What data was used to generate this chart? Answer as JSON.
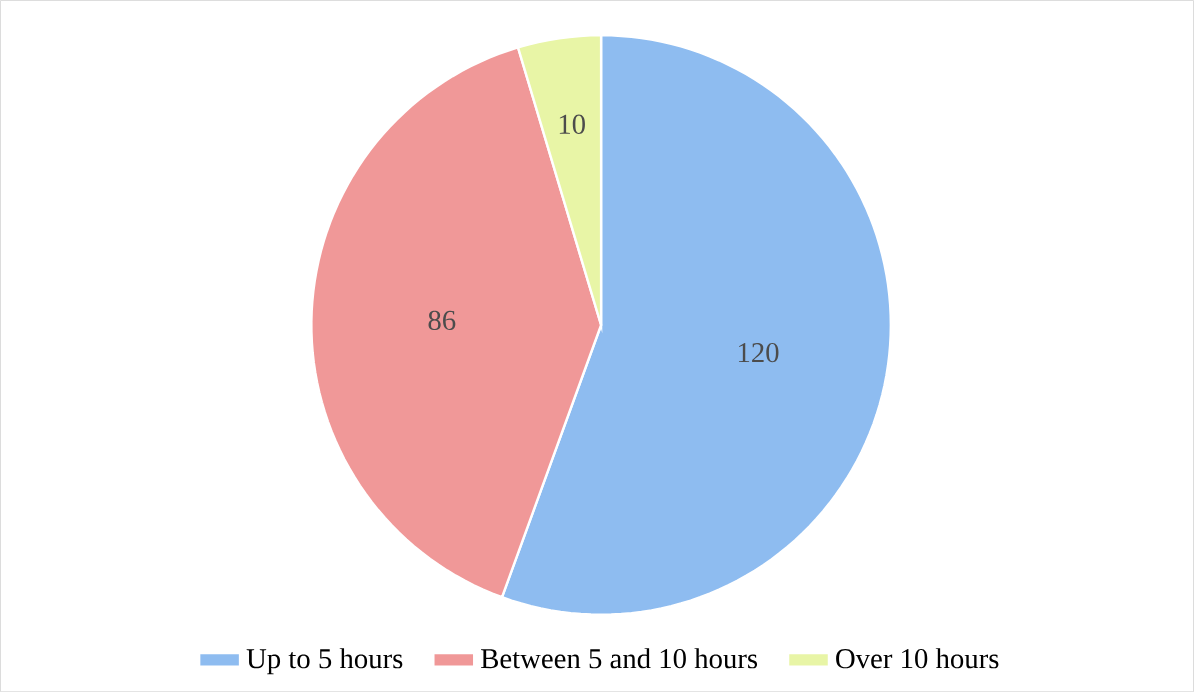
{
  "chart_data": {
    "type": "pie",
    "categories": [
      "Up to 5 hours",
      "Between 5 and 10 hours",
      "Over 10 hours"
    ],
    "values": [
      120,
      86,
      10
    ],
    "colors": [
      "#8ebcf0",
      "#f09898",
      "#e8f5a6"
    ],
    "data_labels": true,
    "legend": "bottom"
  }
}
